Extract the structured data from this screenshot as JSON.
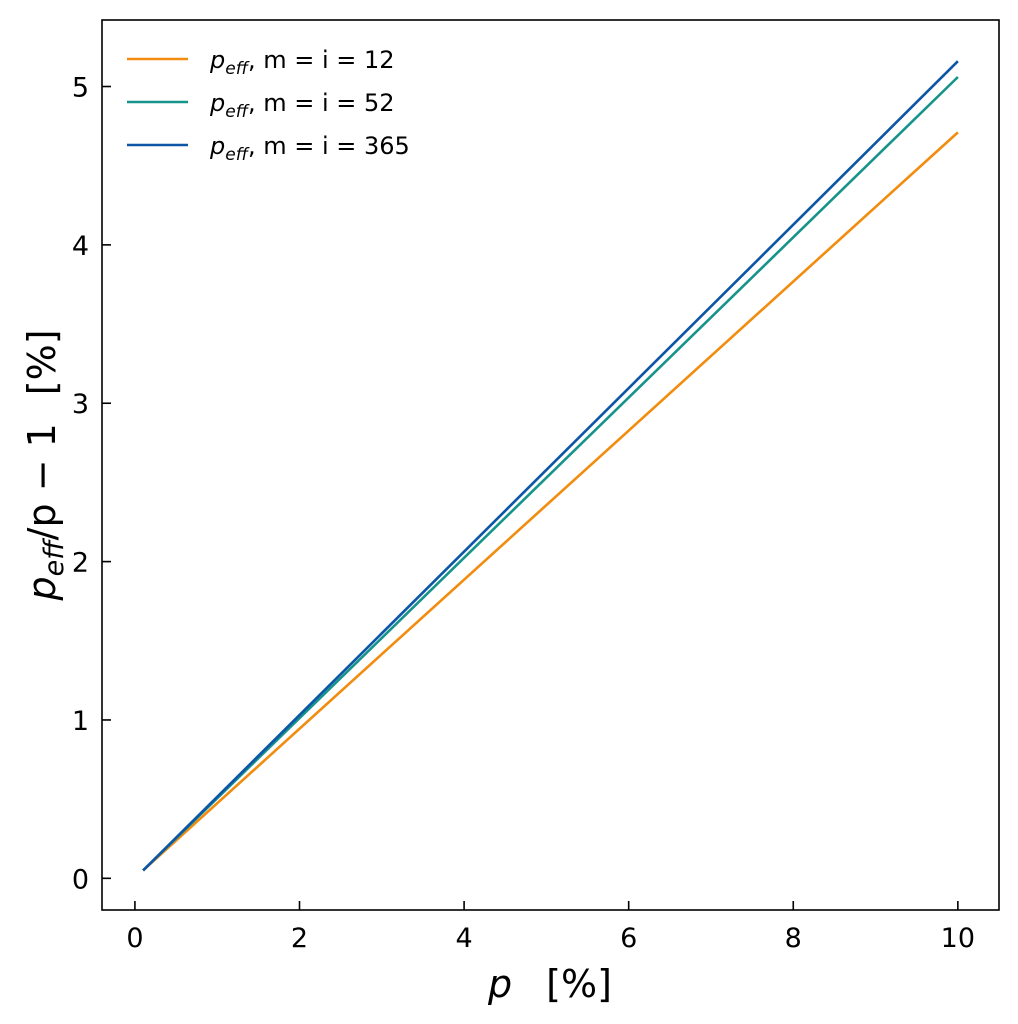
{
  "chart_data": {
    "type": "line",
    "x_label": {
      "var": "p",
      "unit": "[%]"
    },
    "y_label": {
      "var": "p",
      "sub": "eff",
      "rest": "/p − 1",
      "unit": "[%]"
    },
    "xlim": [
      -0.4,
      10.5
    ],
    "ylim": [
      -0.2,
      5.42
    ],
    "xticks": [
      0,
      2,
      4,
      6,
      8,
      10
    ],
    "yticks": [
      0,
      1,
      2,
      3,
      4,
      5
    ],
    "grid": false,
    "legend_position": "top-left",
    "series": [
      {
        "name": "p_eff, m = i = 12",
        "label": {
          "var": "p",
          "sub": "eff",
          "rest": ", m = i = 12"
        },
        "color": "#f28c0f",
        "x": [
          0.1,
          10
        ],
        "y": [
          0.05,
          4.71
        ]
      },
      {
        "name": "p_eff, m = i = 52",
        "label": {
          "var": "p",
          "sub": "eff",
          "rest": ", m = i = 52"
        },
        "color": "#16938a",
        "x": [
          0.1,
          10
        ],
        "y": [
          0.05,
          5.06
        ]
      },
      {
        "name": "p_eff, m = i = 365",
        "label": {
          "var": "p",
          "sub": "eff",
          "rest": ", m = i = 365"
        },
        "color": "#0d56a6",
        "x": [
          0.1,
          10
        ],
        "y": [
          0.05,
          5.16
        ]
      }
    ]
  }
}
